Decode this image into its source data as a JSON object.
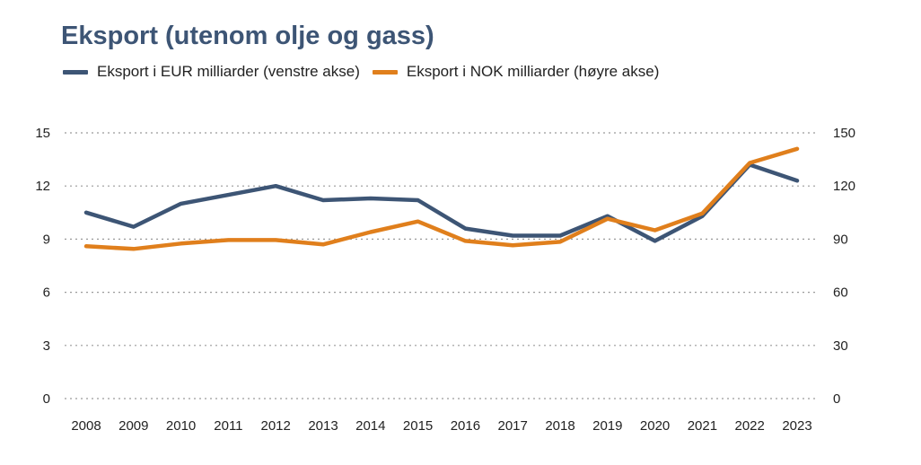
{
  "chart_data": {
    "type": "line",
    "title": "Eksport (utenom olje og gass)",
    "categories": [
      "2008",
      "2009",
      "2010",
      "2011",
      "2012",
      "2013",
      "2014",
      "2015",
      "2016",
      "2017",
      "2018",
      "2019",
      "2020",
      "2021",
      "2022",
      "2023"
    ],
    "series": [
      {
        "name": "Eksport i EUR milliarder (venstre akse)",
        "axis": "left",
        "color": "#3d5575",
        "values": [
          10.5,
          9.7,
          11.0,
          11.5,
          12.0,
          11.2,
          11.3,
          11.2,
          9.6,
          9.2,
          9.2,
          10.3,
          8.9,
          10.3,
          13.2,
          12.3
        ]
      },
      {
        "name": "Eksport i NOK milliarder (høyre akse)",
        "axis": "right",
        "color": "#e07f1c",
        "values": [
          86,
          84.5,
          87.5,
          89.5,
          89.5,
          87,
          94,
          100,
          89,
          86.5,
          88.5,
          101.5,
          95,
          104.5,
          133,
          141
        ]
      }
    ],
    "ylim_left": [
      0,
      15
    ],
    "ylim_right": [
      0,
      150
    ],
    "yticks_left": [
      "0",
      "3",
      "6",
      "9",
      "12",
      "15"
    ],
    "yticks_right": [
      "0",
      "30",
      "60",
      "90",
      "120",
      "150"
    ],
    "grid": "horizontal dotted",
    "legend_position": "top-left"
  }
}
